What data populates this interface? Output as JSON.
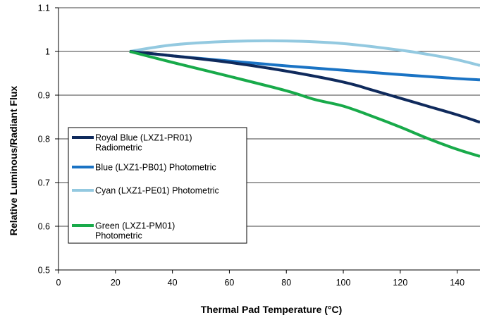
{
  "chart_data": {
    "type": "line",
    "title": "",
    "xlabel": "Thermal Pad Temperature (°C)",
    "ylabel": "Relative Luminous/Radiant Flux",
    "xlim": [
      0,
      148
    ],
    "ylim": [
      0.5,
      1.1
    ],
    "x_ticks": [
      0,
      20,
      40,
      60,
      80,
      100,
      120,
      140
    ],
    "y_ticks": [
      0.5,
      0.6,
      0.7,
      0.8,
      0.9,
      1,
      1.1
    ],
    "x_tick_labels": [
      "0",
      "20",
      "40",
      "60",
      "80",
      "100",
      "120",
      "140"
    ],
    "y_tick_labels": [
      "0.5",
      "0.6",
      "0.7",
      "0.8",
      "0.9",
      "1",
      "1.1"
    ],
    "grid": "horizontal",
    "legend_position": "left",
    "series": [
      {
        "name": "Royal Blue (LXZ1-PR01) Radiometric",
        "legend_lines": [
          "Royal Blue (LXZ1-PR01)",
          "Radiometric"
        ],
        "color": "#0f2a5c",
        "x": [
          25,
          40,
          60,
          80,
          100,
          110,
          120,
          130,
          140,
          148
        ],
        "y": [
          1.0,
          0.99,
          0.975,
          0.955,
          0.93,
          0.912,
          0.893,
          0.874,
          0.855,
          0.838
        ]
      },
      {
        "name": "Blue (LXZ1-PB01) Photometric",
        "legend_lines": [
          "Blue (LXZ1-PB01) Photometric"
        ],
        "color": "#1a73c4",
        "x": [
          25,
          40,
          60,
          80,
          100,
          120,
          140,
          148
        ],
        "y": [
          1.0,
          0.99,
          0.978,
          0.967,
          0.957,
          0.947,
          0.938,
          0.935
        ]
      },
      {
        "name": "Cyan (LXZ1-PE01) Photometric",
        "legend_lines": [
          "Cyan (LXZ1-PE01) Photometric"
        ],
        "color": "#93c9e0",
        "x": [
          25,
          40,
          60,
          80,
          100,
          120,
          130,
          140,
          148
        ],
        "y": [
          1.0,
          1.015,
          1.023,
          1.024,
          1.018,
          1.003,
          0.993,
          0.981,
          0.968
        ]
      },
      {
        "name": "Green (LXZ1-PM01) Photometric",
        "legend_lines": [
          "Green (LXZ1-PM01)",
          "Photometric"
        ],
        "color": "#18aa4a",
        "x": [
          25,
          40,
          60,
          80,
          90,
          100,
          110,
          120,
          130,
          140,
          148
        ],
        "y": [
          1.0,
          0.975,
          0.943,
          0.91,
          0.89,
          0.875,
          0.852,
          0.827,
          0.8,
          0.776,
          0.76
        ]
      }
    ]
  }
}
